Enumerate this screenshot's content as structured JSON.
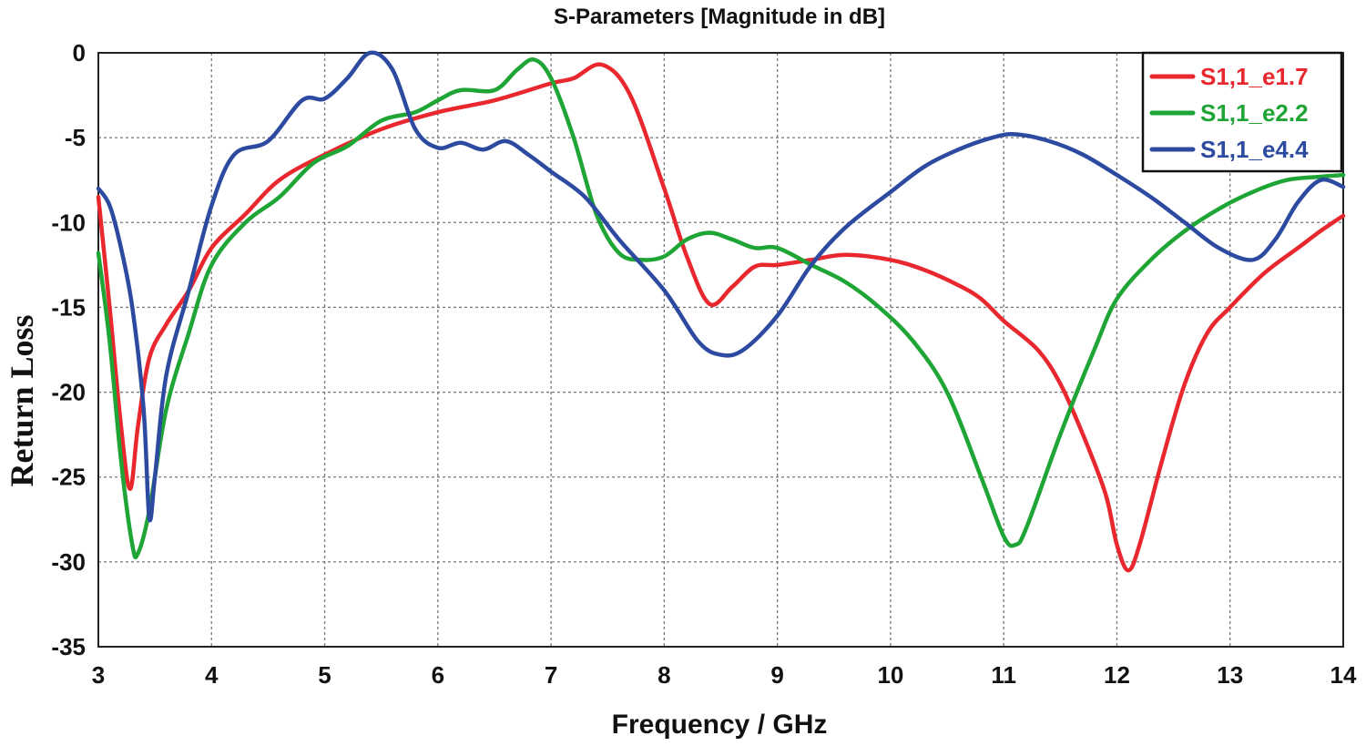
{
  "chart_data": {
    "type": "line",
    "title": "S-Parameters [Magnitude in dB]",
    "xlabel": "Frequency / GHz",
    "ylabel": "Return Loss",
    "xlim": [
      3,
      14
    ],
    "ylim": [
      -35,
      0
    ],
    "xticks": [
      3,
      4,
      5,
      6,
      7,
      8,
      9,
      10,
      11,
      12,
      13,
      14
    ],
    "yticks": [
      0,
      -5,
      -10,
      -15,
      -20,
      -25,
      -30,
      -35
    ],
    "grid": true,
    "legend_position": "top-right",
    "series": [
      {
        "name": "S1,1_e1.7",
        "color": "#e8282e",
        "x": [
          3.0,
          3.1,
          3.2,
          3.28,
          3.35,
          3.45,
          3.6,
          3.8,
          4.0,
          4.3,
          4.6,
          5.0,
          5.5,
          6.0,
          6.5,
          7.0,
          7.2,
          7.45,
          7.7,
          8.0,
          8.2,
          8.4,
          8.6,
          8.8,
          9.0,
          9.3,
          9.6,
          10.0,
          10.3,
          10.6,
          10.8,
          11.0,
          11.3,
          11.5,
          11.7,
          11.9,
          12.0,
          12.1,
          12.2,
          12.4,
          12.6,
          12.8,
          13.0,
          13.3,
          13.6,
          13.8,
          14.0
        ],
        "y": [
          -8.5,
          -15.0,
          -22.0,
          -25.7,
          -22.0,
          -18.0,
          -16.0,
          -14.0,
          -11.5,
          -9.5,
          -7.5,
          -6.0,
          -4.5,
          -3.5,
          -2.8,
          -1.8,
          -1.5,
          -0.7,
          -2.5,
          -8.0,
          -12.0,
          -14.8,
          -13.8,
          -12.6,
          -12.5,
          -12.2,
          -11.9,
          -12.2,
          -12.8,
          -13.7,
          -14.5,
          -15.8,
          -17.5,
          -19.5,
          -22.5,
          -26.0,
          -29.0,
          -30.5,
          -29.0,
          -24.0,
          -19.5,
          -16.5,
          -15.0,
          -13.0,
          -11.5,
          -10.5,
          -9.6
        ]
      },
      {
        "name": "S1,1_e2.2",
        "color": "#1fa535",
        "x": [
          3.0,
          3.1,
          3.2,
          3.3,
          3.35,
          3.45,
          3.6,
          3.8,
          4.0,
          4.3,
          4.6,
          4.9,
          5.2,
          5.5,
          5.8,
          6.0,
          6.2,
          6.5,
          6.7,
          6.85,
          7.0,
          7.2,
          7.4,
          7.6,
          7.8,
          8.0,
          8.2,
          8.4,
          8.6,
          8.8,
          9.0,
          9.3,
          9.6,
          9.9,
          10.2,
          10.5,
          10.8,
          11.0,
          11.1,
          11.2,
          11.5,
          11.8,
          12.0,
          12.3,
          12.6,
          12.9,
          13.2,
          13.5,
          13.8,
          14.0
        ],
        "y": [
          -11.8,
          -17.0,
          -24.0,
          -29.0,
          -29.5,
          -27.0,
          -21.0,
          -16.5,
          -12.5,
          -10.0,
          -8.5,
          -6.5,
          -5.5,
          -4.0,
          -3.5,
          -2.8,
          -2.2,
          -2.2,
          -1.0,
          -0.4,
          -1.5,
          -5.0,
          -9.5,
          -11.8,
          -12.2,
          -12.0,
          -11.0,
          -10.6,
          -11.0,
          -11.5,
          -11.5,
          -12.5,
          -13.5,
          -15.0,
          -17.0,
          -20.0,
          -25.0,
          -28.5,
          -29.0,
          -28.0,
          -22.5,
          -17.5,
          -14.5,
          -12.2,
          -10.5,
          -9.2,
          -8.2,
          -7.5,
          -7.3,
          -7.2
        ]
      },
      {
        "name": "S1,1_e4.4",
        "color": "#2d4aa1",
        "x": [
          3.0,
          3.1,
          3.2,
          3.3,
          3.4,
          3.45,
          3.5,
          3.6,
          3.8,
          4.0,
          4.2,
          4.5,
          4.8,
          5.0,
          5.2,
          5.4,
          5.6,
          5.8,
          6.0,
          6.2,
          6.4,
          6.6,
          6.8,
          7.0,
          7.3,
          7.6,
          8.0,
          8.3,
          8.5,
          8.7,
          9.0,
          9.3,
          9.6,
          10.0,
          10.3,
          10.6,
          10.9,
          11.1,
          11.4,
          11.7,
          12.0,
          12.3,
          12.6,
          12.9,
          13.2,
          13.4,
          13.6,
          13.8,
          14.0
        ],
        "y": [
          -8.0,
          -9.0,
          -11.5,
          -15.0,
          -21.0,
          -27.4,
          -25.0,
          -19.0,
          -14.0,
          -9.0,
          -6.0,
          -5.2,
          -2.8,
          -2.7,
          -1.5,
          0.0,
          -1.0,
          -4.5,
          -5.6,
          -5.3,
          -5.7,
          -5.2,
          -6.0,
          -7.0,
          -8.5,
          -11.0,
          -14.0,
          -17.0,
          -17.8,
          -17.5,
          -15.5,
          -12.5,
          -10.3,
          -8.2,
          -6.7,
          -5.7,
          -5.0,
          -4.8,
          -5.2,
          -6.0,
          -7.2,
          -8.5,
          -10.0,
          -11.5,
          -12.2,
          -11.0,
          -8.8,
          -7.5,
          -7.9
        ]
      }
    ]
  }
}
